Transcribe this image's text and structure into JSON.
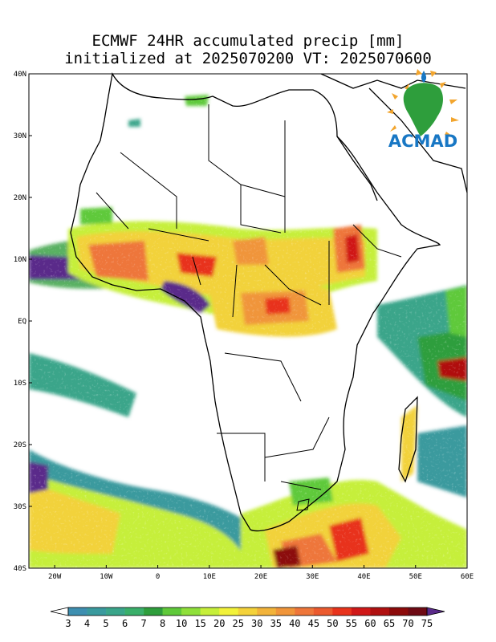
{
  "title": {
    "line1": "ECMWF 24HR accumulated precip [mm]",
    "line2": "initialized at 2025070200 VT: 2025070600"
  },
  "logo": {
    "text": "ACMAD"
  },
  "map": {
    "lat_labels": [
      "40N",
      "30N",
      "20N",
      "10N",
      "EQ",
      "10S",
      "20S",
      "30S",
      "40S"
    ],
    "lat_values": [
      40,
      30,
      20,
      10,
      0,
      -10,
      -20,
      -30,
      -40
    ],
    "lon_labels": [
      "20W",
      "10W",
      "0",
      "10E",
      "20E",
      "30E",
      "40E",
      "50E",
      "60E"
    ],
    "lon_values": [
      -20,
      -10,
      0,
      10,
      20,
      30,
      40,
      50,
      60
    ],
    "extent": {
      "lon_min": -25,
      "lon_max": 60,
      "lat_min": -40,
      "lat_max": 40
    }
  },
  "colorbar": {
    "labels": [
      "3",
      "4",
      "5",
      "6",
      "7",
      "8",
      "10",
      "15",
      "20",
      "25",
      "30",
      "35",
      "40",
      "45",
      "50",
      "55",
      "60",
      "65",
      "70",
      "75"
    ],
    "colors": [
      "#3e8fb0",
      "#3a9a9e",
      "#3aa58a",
      "#3aaf6a",
      "#2e9e3c",
      "#5fc93a",
      "#8fe03a",
      "#c6ef3a",
      "#f2f23a",
      "#f4d23a",
      "#f2b33a",
      "#f0953a",
      "#ee763a",
      "#eb5a2e",
      "#e8331c",
      "#d01818",
      "#b01010",
      "#8c0a0a",
      "#6e0a14",
      "#4a1e6e"
    ],
    "over_color": "#5a2a8a",
    "under_color": "#ffffff"
  }
}
